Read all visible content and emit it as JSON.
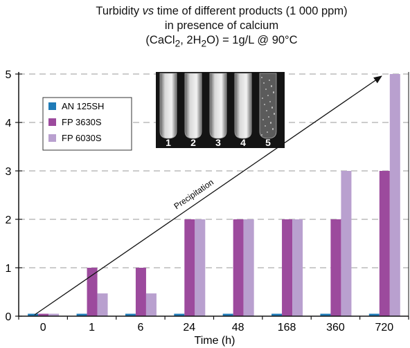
{
  "title": {
    "line1_pre": "Turbidity ",
    "line1_em": "vs",
    "line1_post": " time of different products (1 000 ppm)",
    "line2": "in presence of calcium",
    "line3_a": "(CaCl",
    "line3_sub1": "2",
    "line3_b": ", 2H",
    "line3_sub2": "2",
    "line3_c": "O) = 1g/L @ 90°C"
  },
  "annotation": {
    "arrow_label": "Precipitation"
  },
  "photo": {
    "tube_labels": [
      "1",
      "2",
      "3",
      "4",
      "5"
    ]
  },
  "chart_data": {
    "type": "bar",
    "categories": [
      "0",
      "1",
      "6",
      "24",
      "48",
      "168",
      "360",
      "720"
    ],
    "series": [
      {
        "name": "AN 125SH",
        "color": "#1f7bb7",
        "values": [
          0.05,
          0.05,
          0.05,
          0.05,
          0.05,
          0.05,
          0.05,
          0.05
        ]
      },
      {
        "name": "FP 3630S",
        "color": "#9c4a9d",
        "values": [
          0.05,
          1,
          1,
          2,
          2,
          2,
          2,
          3
        ]
      },
      {
        "name": "FP 6030S",
        "color": "#b9a0cf",
        "values": [
          0.05,
          0.47,
          0.47,
          2,
          2,
          2,
          3,
          5
        ]
      }
    ],
    "xlabel": "Time (h)",
    "ylabel": "",
    "ylim": [
      0,
      5
    ],
    "yticks": [
      "0",
      "1",
      "2",
      "3",
      "4",
      "5"
    ],
    "grid": "horizontal dashed",
    "legend_position": "top-left"
  }
}
